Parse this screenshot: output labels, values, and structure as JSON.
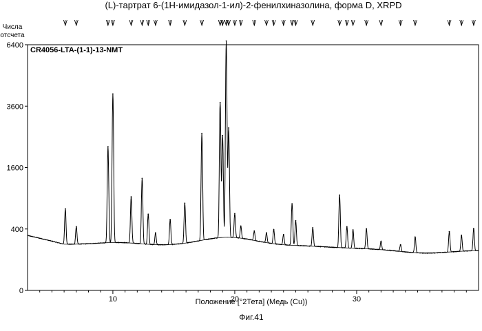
{
  "chart_data": {
    "type": "line",
    "title": "(L)-тартрат 6-(1Н-имидазол-1-ил)-2-фенилхиназолина, форма D, XRPD",
    "sample_label": "CR4056-LTA-(1-1)-13-NMT",
    "ylabel_line1": "Числа",
    "ylabel_line2": "отсчета",
    "xlabel": "Положение [°2Тета] (Медь (Cu))",
    "caption": "Фиг.41",
    "x_range": [
      3.0,
      40.0
    ],
    "y_scale": "sqrt",
    "y_range": [
      0,
      6400
    ],
    "x_ticks": [
      10,
      20,
      30
    ],
    "y_ticks": [
      0,
      400,
      1600,
      3600,
      6400
    ],
    "reference_peaks": [
      6.1,
      7.0,
      9.6,
      10.0,
      11.5,
      12.4,
      12.9,
      13.5,
      14.7,
      15.9,
      17.3,
      18.8,
      19.0,
      19.3,
      19.5,
      20.0,
      20.5,
      21.6,
      22.6,
      23.2,
      24.0,
      24.7,
      25.0,
      26.4,
      28.6,
      29.2,
      29.7,
      30.8,
      32.0,
      33.6,
      34.8,
      37.6,
      38.6,
      39.6
    ],
    "peaks": [
      {
        "x": 6.1,
        "y": 480
      },
      {
        "x": 7.0,
        "y": 205
      },
      {
        "x": 9.6,
        "y": 1950
      },
      {
        "x": 10.0,
        "y": 3850
      },
      {
        "x": 11.5,
        "y": 690
      },
      {
        "x": 12.4,
        "y": 1100
      },
      {
        "x": 12.9,
        "y": 390
      },
      {
        "x": 13.5,
        "y": 130
      },
      {
        "x": 14.7,
        "y": 310
      },
      {
        "x": 15.9,
        "y": 570
      },
      {
        "x": 17.3,
        "y": 2350
      },
      {
        "x": 18.8,
        "y": 3450
      },
      {
        "x": 19.0,
        "y": 2250
      },
      {
        "x": 19.3,
        "y": 6300
      },
      {
        "x": 19.5,
        "y": 2500
      },
      {
        "x": 20.0,
        "y": 330
      },
      {
        "x": 20.5,
        "y": 150
      },
      {
        "x": 21.6,
        "y": 110
      },
      {
        "x": 22.6,
        "y": 110
      },
      {
        "x": 23.2,
        "y": 160
      },
      {
        "x": 24.0,
        "y": 110
      },
      {
        "x": 24.7,
        "y": 580
      },
      {
        "x": 25.0,
        "y": 300
      },
      {
        "x": 26.4,
        "y": 210
      },
      {
        "x": 28.6,
        "y": 770
      },
      {
        "x": 29.2,
        "y": 240
      },
      {
        "x": 29.7,
        "y": 200
      },
      {
        "x": 30.8,
        "y": 220
      },
      {
        "x": 32.0,
        "y": 80
      },
      {
        "x": 33.6,
        "y": 60
      },
      {
        "x": 34.8,
        "y": 150
      },
      {
        "x": 37.6,
        "y": 210
      },
      {
        "x": 38.6,
        "y": 160
      },
      {
        "x": 39.6,
        "y": 240
      }
    ]
  }
}
